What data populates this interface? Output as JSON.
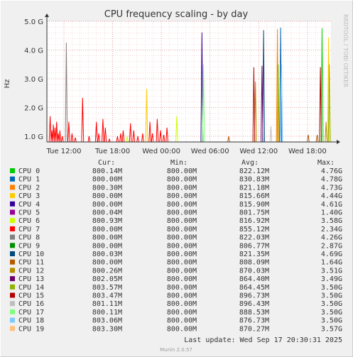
{
  "chart_data": {
    "type": "line",
    "title": "CPU frequency scaling - by day",
    "ylabel": "Hz",
    "side_label": "RRDTOOL / TOBI OETIKER",
    "y_ticks": [
      "1.0 G",
      "2.0 G",
      "3.0 G",
      "4.0 G",
      "5.0 G"
    ],
    "y_tick_values": [
      1.0,
      2.0,
      3.0,
      4.0,
      5.0
    ],
    "ylim": [
      0.8,
      5.0
    ],
    "x_ticks": [
      "Tue 12:00",
      "Tue 18:00",
      "Wed 00:00",
      "Wed 06:00",
      "Wed 12:00",
      "Wed 18:00"
    ],
    "x_tick_hours": [
      0,
      6,
      12,
      18,
      24,
      30
    ],
    "xlim_hours": [
      -2.1,
      32.9
    ],
    "grid": true,
    "legend_columns": [
      "Cur:",
      "Min:",
      "Avg:",
      "Max:"
    ],
    "series": [
      {
        "name": "CPU 0",
        "color": "#00cc00",
        "cur": "800.14M",
        "min": "800.00M",
        "avg": "822.12M",
        "max": "4.76G"
      },
      {
        "name": "CPU 1",
        "color": "#0066b3",
        "cur": "800.00M",
        "min": "800.00M",
        "avg": "830.83M",
        "max": "4.78G"
      },
      {
        "name": "CPU 2",
        "color": "#ff8000",
        "cur": "800.30M",
        "min": "800.00M",
        "avg": "821.18M",
        "max": "4.73G"
      },
      {
        "name": "CPU 3",
        "color": "#ffcc00",
        "cur": "800.00M",
        "min": "800.00M",
        "avg": "815.66M",
        "max": "4.44G"
      },
      {
        "name": "CPU 4",
        "color": "#330099",
        "cur": "800.00M",
        "min": "800.00M",
        "avg": "815.90M",
        "max": "4.61G"
      },
      {
        "name": "CPU 5",
        "color": "#990099",
        "cur": "800.04M",
        "min": "800.00M",
        "avg": "801.75M",
        "max": "1.40G"
      },
      {
        "name": "CPU 6",
        "color": "#ccff00",
        "cur": "800.93M",
        "min": "800.00M",
        "avg": "816.92M",
        "max": "3.58G"
      },
      {
        "name": "CPU 7",
        "color": "#ff0000",
        "cur": "800.00M",
        "min": "800.00M",
        "avg": "855.12M",
        "max": "2.34G"
      },
      {
        "name": "CPU 8",
        "color": "#808080",
        "cur": "800.00M",
        "min": "800.00M",
        "avg": "822.03M",
        "max": "4.26G"
      },
      {
        "name": "CPU 9",
        "color": "#008f00",
        "cur": "800.00M",
        "min": "800.00M",
        "avg": "806.77M",
        "max": "2.87G"
      },
      {
        "name": "CPU 10",
        "color": "#00487d",
        "cur": "800.03M",
        "min": "800.00M",
        "avg": "821.35M",
        "max": "4.69G"
      },
      {
        "name": "CPU 11",
        "color": "#b35a00",
        "cur": "800.00M",
        "min": "800.00M",
        "avg": "808.09M",
        "max": "1.64G"
      },
      {
        "name": "CPU 12",
        "color": "#b38f00",
        "cur": "800.26M",
        "min": "800.00M",
        "avg": "870.03M",
        "max": "3.51G"
      },
      {
        "name": "CPU 13",
        "color": "#6b006b",
        "cur": "802.05M",
        "min": "800.00M",
        "avg": "864.40M",
        "max": "3.49G"
      },
      {
        "name": "CPU 14",
        "color": "#8fb300",
        "cur": "803.57M",
        "min": "800.00M",
        "avg": "864.45M",
        "max": "3.50G"
      },
      {
        "name": "CPU 15",
        "color": "#b30000",
        "cur": "803.47M",
        "min": "800.00M",
        "avg": "896.73M",
        "max": "3.50G"
      },
      {
        "name": "CPU 16",
        "color": "#bebebe",
        "cur": "801.11M",
        "min": "800.00M",
        "avg": "896.43M",
        "max": "3.50G"
      },
      {
        "name": "CPU 17",
        "color": "#80ff80",
        "cur": "800.11M",
        "min": "800.00M",
        "avg": "888.53M",
        "max": "3.50G"
      },
      {
        "name": "CPU 18",
        "color": "#80c9ff",
        "cur": "803.06M",
        "min": "800.00M",
        "avg": "876.73M",
        "max": "3.50G"
      },
      {
        "name": "CPU 19",
        "color": "#ffc080",
        "cur": "803.30M",
        "min": "800.00M",
        "avg": "870.27M",
        "max": "3.57G"
      }
    ],
    "spikes": [
      {
        "cpu": 7,
        "hour": -1.7,
        "ghz": 1.7
      },
      {
        "cpu": 7,
        "hour": -1.5,
        "ghz": 1.2
      },
      {
        "cpu": 7,
        "hour": -1.3,
        "ghz": 1.4
      },
      {
        "cpu": 7,
        "hour": -1.1,
        "ghz": 1.3
      },
      {
        "cpu": 7,
        "hour": -0.9,
        "ghz": 1.5
      },
      {
        "cpu": 7,
        "hour": -0.7,
        "ghz": 1.1
      },
      {
        "cpu": 7,
        "hour": -0.5,
        "ghz": 1.2
      },
      {
        "cpu": 7,
        "hour": -0.2,
        "ghz": 1.0
      },
      {
        "cpu": 8,
        "hour": 0.3,
        "ghz": 4.26
      },
      {
        "cpu": 7,
        "hour": 0.6,
        "ghz": 1.5
      },
      {
        "cpu": 7,
        "hour": 1.0,
        "ghz": 1.1
      },
      {
        "cpu": 7,
        "hour": 1.4,
        "ghz": 0.95
      },
      {
        "cpu": 7,
        "hour": 2.3,
        "ghz": 2.34
      },
      {
        "cpu": 7,
        "hour": 3.1,
        "ghz": 1.0
      },
      {
        "cpu": 7,
        "hour": 4.0,
        "ghz": 1.5
      },
      {
        "cpu": 7,
        "hour": 4.3,
        "ghz": 1.1
      },
      {
        "cpu": 7,
        "hour": 4.8,
        "ghz": 1.6
      },
      {
        "cpu": 7,
        "hour": 5.1,
        "ghz": 1.3
      },
      {
        "cpu": 7,
        "hour": 5.6,
        "ghz": 0.9
      },
      {
        "cpu": 7,
        "hour": 6.6,
        "ghz": 1.0
      },
      {
        "cpu": 7,
        "hour": 7.0,
        "ghz": 1.1
      },
      {
        "cpu": 7,
        "hour": 7.3,
        "ghz": 1.2
      },
      {
        "cpu": 6,
        "hour": 7.8,
        "ghz": 1.0
      },
      {
        "cpu": 7,
        "hour": 8.2,
        "ghz": 1.45
      },
      {
        "cpu": 7,
        "hour": 8.6,
        "ghz": 1.2
      },
      {
        "cpu": 7,
        "hour": 9.1,
        "ghz": 1.0
      },
      {
        "cpu": 7,
        "hour": 9.7,
        "ghz": 1.1
      },
      {
        "cpu": 3,
        "hour": 10.2,
        "ghz": 2.65
      },
      {
        "cpu": 7,
        "hour": 10.6,
        "ghz": 1.5
      },
      {
        "cpu": 7,
        "hour": 10.9,
        "ghz": 1.1
      },
      {
        "cpu": 7,
        "hour": 11.5,
        "ghz": 1.6
      },
      {
        "cpu": 7,
        "hour": 11.9,
        "ghz": 1.2
      },
      {
        "cpu": 7,
        "hour": 12.3,
        "ghz": 1.05
      },
      {
        "cpu": 7,
        "hour": 12.7,
        "ghz": 1.3
      },
      {
        "cpu": 6,
        "hour": 13.9,
        "ghz": 1.7
      },
      {
        "cpu": 4,
        "hour": 17.0,
        "ghz": 4.61
      },
      {
        "cpu": 17,
        "hour": 17.2,
        "ghz": 3.5
      },
      {
        "cpu": 11,
        "hour": 20.3,
        "ghz": 1.0
      },
      {
        "cpu": 15,
        "hour": 23.4,
        "ghz": 3.4
      },
      {
        "cpu": 12,
        "hour": 23.6,
        "ghz": 2.9
      },
      {
        "cpu": 10,
        "hour": 24.6,
        "ghz": 4.69
      },
      {
        "cpu": 13,
        "hour": 24.4,
        "ghz": 3.45
      },
      {
        "cpu": 16,
        "hour": 25.5,
        "ghz": 1.35
      },
      {
        "cpu": 2,
        "hour": 26.3,
        "ghz": 4.73
      },
      {
        "cpu": 14,
        "hour": 26.4,
        "ghz": 3.5
      },
      {
        "cpu": 1,
        "hour": 26.7,
        "ghz": 4.78
      },
      {
        "cpu": 18,
        "hour": 26.8,
        "ghz": 3.5
      },
      {
        "cpu": 11,
        "hour": 30.1,
        "ghz": 1.05
      },
      {
        "cpu": 11,
        "hour": 31.2,
        "ghz": 1.05
      },
      {
        "cpu": 15,
        "hour": 31.6,
        "ghz": 3.4
      },
      {
        "cpu": 0,
        "hour": 31.8,
        "ghz": 4.76
      },
      {
        "cpu": 12,
        "hour": 32.3,
        "ghz": 1.5
      },
      {
        "cpu": 3,
        "hour": 32.6,
        "ghz": 4.44
      },
      {
        "cpu": 14,
        "hour": 32.7,
        "ghz": 3.5
      }
    ]
  },
  "footer": {
    "last_update": "Last update: Wed Sep 17 20:30:31 2025",
    "munin": "Munin 2.0.57"
  }
}
